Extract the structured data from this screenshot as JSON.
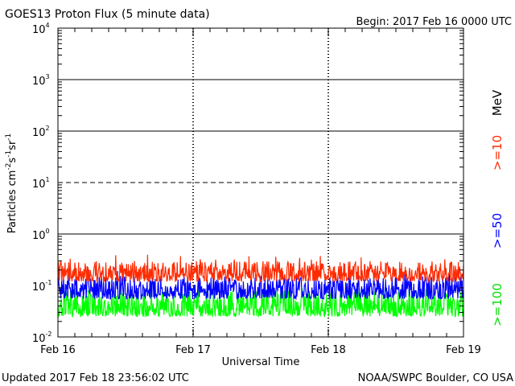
{
  "chart_data": {
    "type": "line",
    "title": "GOES13 Proton Flux (5 minute data)",
    "begin": "Begin: 2017 Feb 16 0000 UTC",
    "xlabel": "Universal Time",
    "ylabel_parts": [
      "Particles cm",
      "-2",
      "s",
      "-1",
      "sr",
      "-1"
    ],
    "y_scale": "log",
    "ylim": [
      0.01,
      10000
    ],
    "xlim": [
      0,
      3
    ],
    "x_ticks": [
      {
        "value": 0,
        "label": "Feb 16"
      },
      {
        "value": 1,
        "label": "Feb 17"
      },
      {
        "value": 2,
        "label": "Feb 18"
      },
      {
        "value": 3,
        "label": "Feb 19"
      }
    ],
    "y_ticks": [
      {
        "value": 10000,
        "base": "10",
        "exp": "4"
      },
      {
        "value": 1000,
        "base": "10",
        "exp": "3"
      },
      {
        "value": 100,
        "base": "10",
        "exp": "2"
      },
      {
        "value": 10,
        "base": "10",
        "exp": "1"
      },
      {
        "value": 1,
        "base": "10",
        "exp": "0"
      },
      {
        "value": 0.1,
        "base": "10",
        "exp": "-1"
      },
      {
        "value": 0.01,
        "base": "10",
        "exp": "-2"
      }
    ],
    "reference_lines": [
      1000,
      100,
      10,
      1
    ],
    "dashed_reference": 10,
    "grid": true,
    "series": [
      {
        "name": ">=10",
        "color": "#ff2a00",
        "typical_range": [
          0.12,
          0.3
        ]
      },
      {
        "name": ">=50",
        "color": "#0000ff",
        "typical_range": [
          0.055,
          0.15
        ]
      },
      {
        "name": ">=100",
        "color": "#00ff00",
        "typical_range": [
          0.025,
          0.08
        ]
      }
    ],
    "unit_label": "MeV"
  },
  "footer": {
    "updated": "Updated 2017 Feb 18 23:56:02 UTC",
    "source": "NOAA/SWPC Boulder, CO USA"
  }
}
